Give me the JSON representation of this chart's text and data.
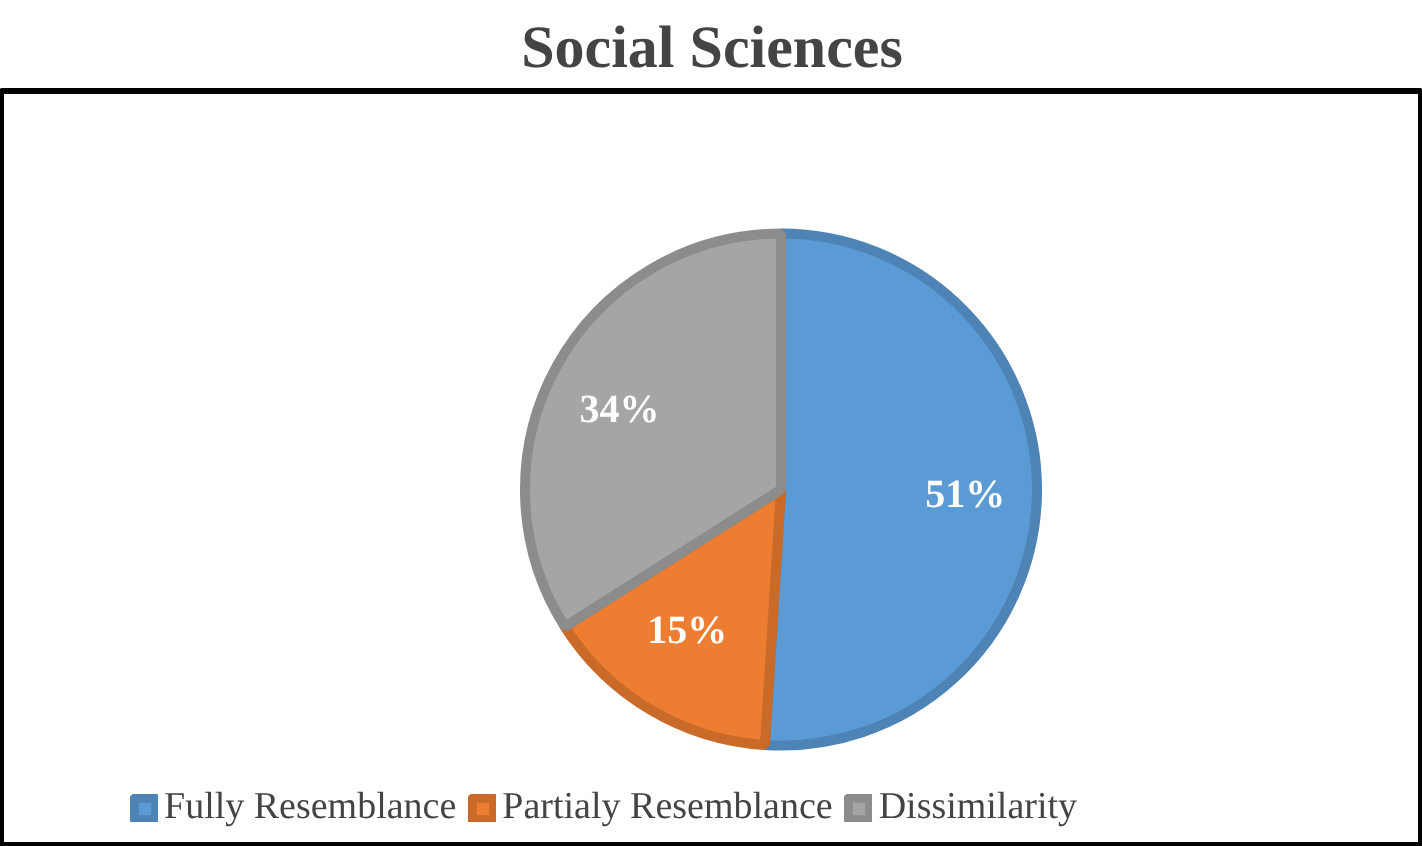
{
  "chart_data": {
    "type": "pie",
    "title": "Social Sciences",
    "categories": [
      "Fully Resemblance",
      "Partialy Resemblance",
      "Dissimilarity"
    ],
    "values": [
      51,
      15,
      34
    ],
    "colors": [
      "#5b9bd5",
      "#ed7d31",
      "#a5a5a5"
    ],
    "value_labels": [
      "51%",
      "15%",
      "34%"
    ],
    "legend": "bottom"
  }
}
